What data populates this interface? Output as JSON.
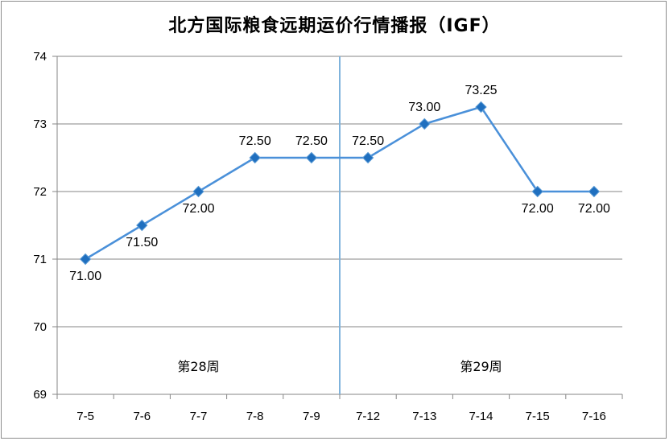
{
  "chart_data": {
    "type": "line",
    "title": "北方国际粮食远期运价行情播报（IGF）",
    "categories": [
      "7-5",
      "7-6",
      "7-7",
      "7-8",
      "7-9",
      "7-12",
      "7-13",
      "7-14",
      "7-15",
      "7-16"
    ],
    "values": [
      71.0,
      71.5,
      72.0,
      72.5,
      72.5,
      72.5,
      73.0,
      73.25,
      72.0,
      72.0
    ],
    "data_labels": [
      "71.00",
      "71.50",
      "72.00",
      "72.50",
      "72.50",
      "72.50",
      "73.00",
      "73.25",
      "72.00",
      "72.00"
    ],
    "ylim": [
      69,
      74
    ],
    "yticks": [
      "69",
      "70",
      "71",
      "72",
      "73",
      "74"
    ],
    "grid": true,
    "legend": "none",
    "line_color": "#4a90d9",
    "marker_color": "#1f6fbf",
    "divider_after_index": 4,
    "week_labels": [
      "第28周",
      "第29周"
    ]
  }
}
